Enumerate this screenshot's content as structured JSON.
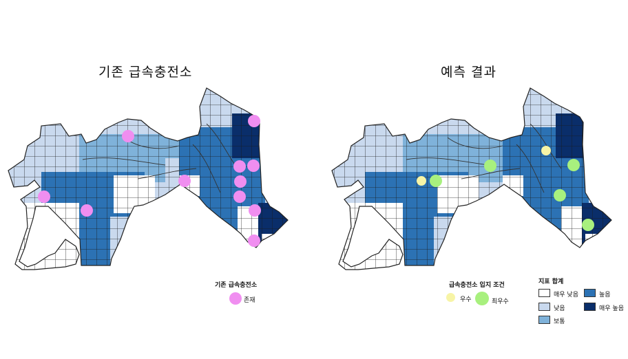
{
  "maps": {
    "left_title": "기존 급속충전소",
    "right_title": "예측 결과"
  },
  "legend_existing": {
    "title": "기존 급속충전소",
    "item_label": "존재",
    "color": "#f08ef0"
  },
  "legend_conditions": {
    "title": "급속충전소 입지 조건",
    "items": [
      {
        "label": "우수",
        "color": "#f7f4a6"
      },
      {
        "label": "최우수",
        "color": "#a8f07e"
      }
    ]
  },
  "legend_index": {
    "title": "지표 합계",
    "items": [
      {
        "label": "매우 낮음",
        "color": "#ffffff"
      },
      {
        "label": "낮음",
        "color": "#c9d9ee"
      },
      {
        "label": "보통",
        "color": "#7fb2da"
      },
      {
        "label": "높음",
        "color": "#2c72b4"
      },
      {
        "label": "매우 높음",
        "color": "#0a2e6a"
      }
    ]
  }
}
